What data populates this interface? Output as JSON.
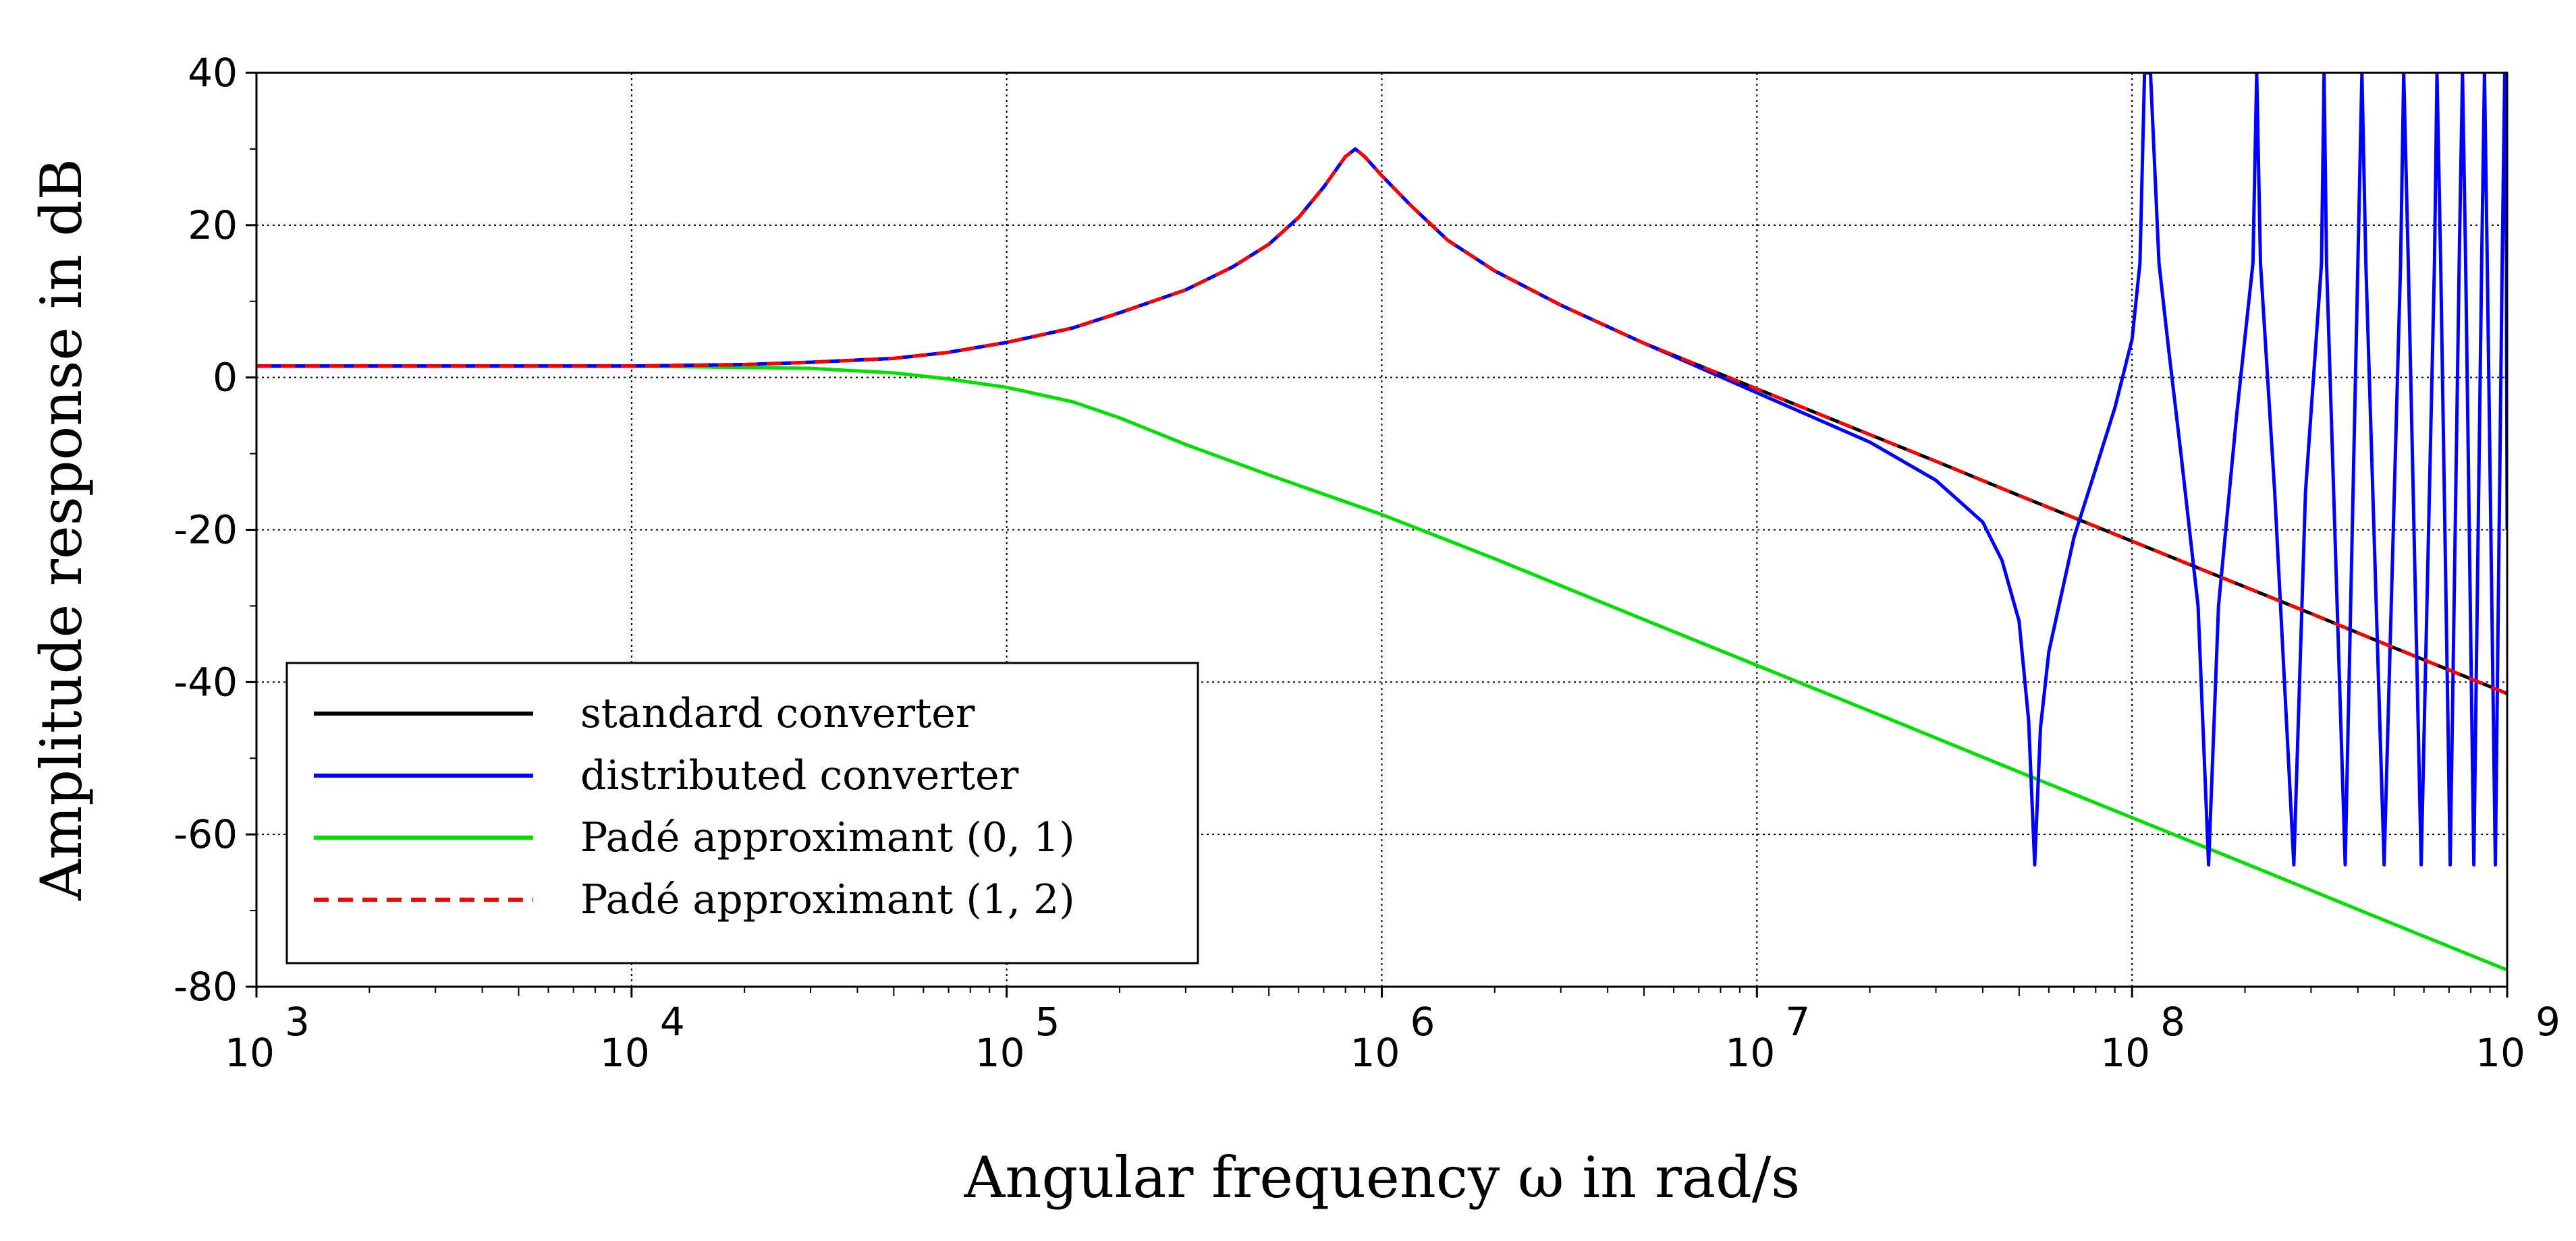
{
  "chart_data": {
    "type": "line",
    "title": "",
    "xlabel": "Angular frequency ω in rad/s",
    "ylabel": "Amplitude response in dB",
    "x_scale": "log",
    "xlim": [
      1000,
      1000000000
    ],
    "ylim": [
      -80,
      40
    ],
    "grid": true,
    "legend_position": "bottom-left",
    "x_ticks": [
      {
        "value": 1000,
        "base": "10",
        "exp": "3"
      },
      {
        "value": 10000,
        "base": "10",
        "exp": "4"
      },
      {
        "value": 100000,
        "base": "10",
        "exp": "5"
      },
      {
        "value": 1000000,
        "base": "10",
        "exp": "6"
      },
      {
        "value": 10000000,
        "base": "10",
        "exp": "7"
      },
      {
        "value": 100000000,
        "base": "10",
        "exp": "8"
      },
      {
        "value": 1000000000,
        "base": "10",
        "exp": "9"
      }
    ],
    "y_ticks": [
      {
        "value": 40,
        "label": "40"
      },
      {
        "value": 20,
        "label": "20"
      },
      {
        "value": 0,
        "label": "0"
      },
      {
        "value": -20,
        "label": "-20"
      },
      {
        "value": -40,
        "label": "-40"
      },
      {
        "value": -60,
        "label": "-60"
      },
      {
        "value": -80,
        "label": "-80"
      }
    ],
    "series": [
      {
        "name": "standard converter",
        "color": "#000000",
        "dash": "solid",
        "points": [
          [
            1000,
            1.5
          ],
          [
            10000,
            1.5
          ],
          [
            20000,
            1.7
          ],
          [
            30000,
            2.0
          ],
          [
            50000,
            2.5
          ],
          [
            70000,
            3.3
          ],
          [
            100000,
            4.6
          ],
          [
            150000,
            6.5
          ],
          [
            200000,
            8.5
          ],
          [
            300000,
            11.5
          ],
          [
            400000,
            14.5
          ],
          [
            500000,
            17.5
          ],
          [
            600000,
            21.0
          ],
          [
            700000,
            25.0
          ],
          [
            800000,
            29.0
          ],
          [
            850000,
            30.0
          ],
          [
            900000,
            29.0
          ],
          [
            1000000,
            26.5
          ],
          [
            1200000,
            22.5
          ],
          [
            1500000,
            18.0
          ],
          [
            2000000,
            14.0
          ],
          [
            3000000,
            9.5
          ],
          [
            5000000,
            4.5
          ],
          [
            10000000,
            -1.5
          ],
          [
            20000000,
            -7.5
          ],
          [
            30000000,
            -11.0
          ],
          [
            50000000,
            -15.5
          ],
          [
            100000000,
            -21.5
          ],
          [
            200000000,
            -27.5
          ],
          [
            300000000,
            -31.0
          ],
          [
            500000000,
            -35.5
          ],
          [
            1000000000,
            -41.5
          ]
        ]
      },
      {
        "name": "distributed converter",
        "color": "#0000ff",
        "dash": "solid",
        "points": [
          [
            1000,
            1.5
          ],
          [
            10000,
            1.5
          ],
          [
            20000,
            1.7
          ],
          [
            30000,
            2.0
          ],
          [
            50000,
            2.5
          ],
          [
            70000,
            3.3
          ],
          [
            100000,
            4.6
          ],
          [
            150000,
            6.5
          ],
          [
            200000,
            8.5
          ],
          [
            300000,
            11.5
          ],
          [
            400000,
            14.5
          ],
          [
            500000,
            17.5
          ],
          [
            600000,
            21.0
          ],
          [
            700000,
            25.0
          ],
          [
            800000,
            29.0
          ],
          [
            850000,
            30.0
          ],
          [
            900000,
            29.0
          ],
          [
            1000000,
            26.5
          ],
          [
            1200000,
            22.5
          ],
          [
            1500000,
            18.0
          ],
          [
            2000000,
            14.0
          ],
          [
            3000000,
            9.5
          ],
          [
            5000000,
            4.5
          ],
          [
            10000000,
            -2.0
          ],
          [
            20000000,
            -8.5
          ],
          [
            30000000,
            -13.5
          ],
          [
            40000000,
            -19.0
          ],
          [
            45000000,
            -24.0
          ],
          [
            50000000,
            -32.0
          ],
          [
            53000000,
            -45.0
          ],
          [
            55000000,
            -64.0
          ],
          [
            57000000,
            -46.0
          ],
          [
            60000000,
            -36.0
          ],
          [
            70000000,
            -21.0
          ],
          [
            80000000,
            -12.0
          ],
          [
            90000000,
            -4.0
          ],
          [
            100000000,
            5.0
          ],
          [
            105000000,
            15.0
          ],
          [
            108000000,
            40.0
          ],
          [
            112000000,
            40.0
          ],
          [
            118000000,
            15.0
          ],
          [
            125000000,
            4.0
          ],
          [
            135000000,
            -10.0
          ],
          [
            150000000,
            -30.0
          ],
          [
            160000000,
            -64.0
          ],
          [
            170000000,
            -30.0
          ],
          [
            190000000,
            -5.0
          ],
          [
            210000000,
            15.0
          ],
          [
            215000000,
            40.0
          ],
          [
            220000000,
            15.0
          ],
          [
            240000000,
            -15.0
          ],
          [
            270000000,
            -64.0
          ],
          [
            290000000,
            -15.0
          ],
          [
            320000000,
            15.0
          ],
          [
            325000000,
            40.0
          ],
          [
            330000000,
            15.0
          ],
          [
            370000000,
            -64.0
          ],
          [
            400000000,
            15.0
          ],
          [
            410000000,
            40.0
          ],
          [
            420000000,
            15.0
          ],
          [
            470000000,
            -64.0
          ],
          [
            520000000,
            15.0
          ],
          [
            530000000,
            40.0
          ],
          [
            545000000,
            15.0
          ],
          [
            590000000,
            -64.0
          ],
          [
            640000000,
            15.0
          ],
          [
            650000000,
            40.0
          ],
          [
            665000000,
            15.0
          ],
          [
            705000000,
            -64.0
          ],
          [
            745000000,
            15.0
          ],
          [
            760000000,
            40.0
          ],
          [
            775000000,
            15.0
          ],
          [
            815000000,
            -64.0
          ],
          [
            855000000,
            15.0
          ],
          [
            870000000,
            40.0
          ],
          [
            885000000,
            15.0
          ],
          [
            930000000,
            -64.0
          ],
          [
            970000000,
            15.0
          ],
          [
            985000000,
            40.0
          ],
          [
            995000000,
            15.0
          ],
          [
            1000000000,
            -20.0
          ]
        ]
      },
      {
        "name": "Padé approximant (0, 1)",
        "color": "#00e000",
        "dash": "solid",
        "points": [
          [
            1000,
            1.5
          ],
          [
            10000,
            1.5
          ],
          [
            30000,
            1.2
          ],
          [
            50000,
            0.6
          ],
          [
            70000,
            -0.2
          ],
          [
            100000,
            -1.3
          ],
          [
            150000,
            -3.2
          ],
          [
            200000,
            -5.3
          ],
          [
            300000,
            -8.8
          ],
          [
            500000,
            -12.8
          ],
          [
            1000000,
            -18.0
          ],
          [
            2000000,
            -23.8
          ],
          [
            5000000,
            -31.8
          ],
          [
            10000000,
            -37.8
          ],
          [
            20000000,
            -43.8
          ],
          [
            50000000,
            -51.8
          ],
          [
            100000000,
            -57.8
          ],
          [
            200000000,
            -63.8
          ],
          [
            500000000,
            -71.8
          ],
          [
            1000000000,
            -77.8
          ]
        ]
      },
      {
        "name": "Padé approximant (1, 2)",
        "color": "#ff0000",
        "dash": "dashed",
        "points": [
          [
            1000,
            1.5
          ],
          [
            10000,
            1.5
          ],
          [
            20000,
            1.7
          ],
          [
            30000,
            2.0
          ],
          [
            50000,
            2.5
          ],
          [
            70000,
            3.3
          ],
          [
            100000,
            4.6
          ],
          [
            150000,
            6.5
          ],
          [
            200000,
            8.5
          ],
          [
            300000,
            11.5
          ],
          [
            400000,
            14.5
          ],
          [
            500000,
            17.5
          ],
          [
            600000,
            21.0
          ],
          [
            700000,
            25.0
          ],
          [
            800000,
            29.0
          ],
          [
            850000,
            30.0
          ],
          [
            900000,
            29.0
          ],
          [
            1000000,
            26.5
          ],
          [
            1200000,
            22.5
          ],
          [
            1500000,
            18.0
          ],
          [
            2000000,
            14.0
          ],
          [
            3000000,
            9.5
          ],
          [
            5000000,
            4.5
          ],
          [
            10000000,
            -1.5
          ],
          [
            20000000,
            -7.5
          ],
          [
            30000000,
            -11.0
          ],
          [
            50000000,
            -15.5
          ],
          [
            100000000,
            -21.5
          ],
          [
            200000000,
            -27.5
          ],
          [
            300000000,
            -31.0
          ],
          [
            500000000,
            -35.5
          ],
          [
            1000000000,
            -41.5
          ]
        ]
      }
    ]
  }
}
